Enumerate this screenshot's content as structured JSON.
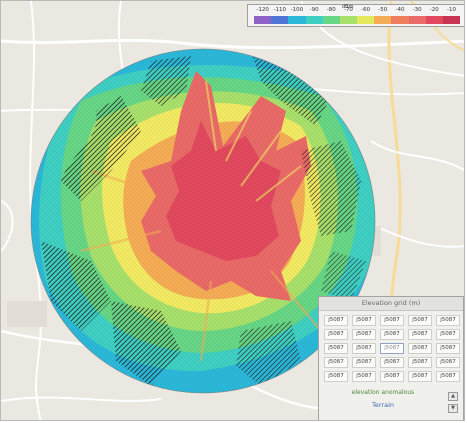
{
  "map": {
    "background_color": "#ebe7e1",
    "road_color": "#ffffff",
    "major_road_color": "#f6dc98",
    "water_color": "#b7d3e8"
  },
  "coverage": {
    "bands": [
      {
        "color": "#2bb8d9"
      },
      {
        "color": "#3fcfc3"
      },
      {
        "color": "#67d685"
      },
      {
        "color": "#a8e06c"
      },
      {
        "color": "#f2ea63"
      },
      {
        "color": "#f5ad55"
      },
      {
        "color": "#e96a66"
      },
      {
        "color": "#e2495e"
      }
    ],
    "hatch_color": "#1e1e1e"
  },
  "legend": {
    "title": "dBm",
    "labels": [
      "-120",
      "-110",
      "-100",
      "-90",
      "-80",
      "-70",
      "-60",
      "-50",
      "-40",
      "-30",
      "-20",
      "-10"
    ],
    "colors": [
      "#8e62c7",
      "#4e76d6",
      "#2bb8d9",
      "#3fcfc3",
      "#67d685",
      "#a8e06c",
      "#e4e85c",
      "#f5ad55",
      "#ee7d5e",
      "#e96a66",
      "#e2495e",
      "#c93453"
    ]
  },
  "panel": {
    "title": "Elevation grid (m)",
    "cells": [
      "j5087",
      "j5087",
      "j5087",
      "j5087",
      "j5087",
      "j5087",
      "j5087",
      "j5087",
      "j5087",
      "j5087",
      "j5087",
      "j5087",
      "j5087",
      "j5087",
      "j5087",
      "j5087",
      "j5087",
      "j5087",
      "j5087",
      "j5087",
      "j5087",
      "j5087",
      "j5087",
      "j5087",
      "j5087"
    ],
    "selected_index": 12,
    "status": "elevation anomalous",
    "action_label": "Terrain",
    "up_icon": "▲",
    "down_icon": "▼"
  }
}
